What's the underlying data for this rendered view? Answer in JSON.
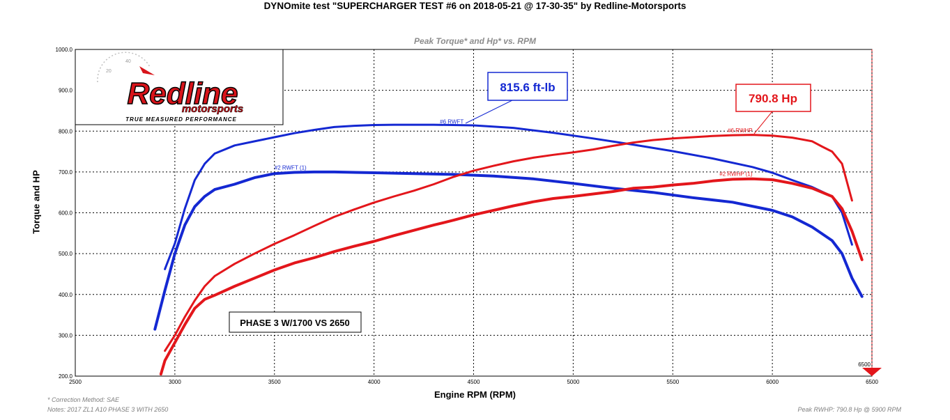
{
  "header": {
    "title": "DYNOmite test \"SUPERCHARGER TEST #6 on 2018-05-21 @ 17-30-35\" by Redline-Motorsports",
    "subtitle": "Peak Torque* and Hp* vs. RPM"
  },
  "logo": {
    "brand": "Redline",
    "sub": "motorsports",
    "tagline": "TRUE MEASURED PERFORMANCE"
  },
  "footer": {
    "correction": "* Correction Method: SAE",
    "notes": "Notes: 2017 ZL1 A10 PHASE 3 WITH 2650",
    "peak": "Peak RWHP: 790.8 Hp @ 5900 RPM"
  },
  "annotations": {
    "torque_callout": "815.6 ft-lb",
    "hp_callout": "790.8 Hp",
    "phase_box": "PHASE 3 W/1700 VS 2650",
    "cursor_label": "6500"
  },
  "colors": {
    "torque": "#1428d2",
    "hp": "#e3161b",
    "grid": "#000000",
    "cursor": "#e3161b"
  },
  "chart_data": {
    "type": "line",
    "title": "Peak Torque* and Hp* vs. RPM",
    "xlabel": "Engine RPM (RPM)",
    "ylabel": "Torque and HP",
    "xlim": [
      2500,
      6500
    ],
    "ylim": [
      200,
      1000
    ],
    "x_ticks": [
      "2500",
      "3000",
      "3500",
      "4000",
      "4500",
      "5000",
      "5500",
      "6000",
      "6500"
    ],
    "y_ticks": [
      "200.0",
      "300.0",
      "400.0",
      "500.0",
      "600.0",
      "700.0",
      "800.0",
      "900.0",
      "1000.0"
    ],
    "grid": true,
    "series": [
      {
        "name": "#6 RWFT",
        "label": "#6 RWFT",
        "kind": "torque",
        "width": 3,
        "points": [
          [
            2950,
            462
          ],
          [
            3000,
            525
          ],
          [
            3050,
            610
          ],
          [
            3100,
            680
          ],
          [
            3150,
            720
          ],
          [
            3200,
            745
          ],
          [
            3300,
            765
          ],
          [
            3400,
            775
          ],
          [
            3500,
            785
          ],
          [
            3600,
            795
          ],
          [
            3700,
            803
          ],
          [
            3800,
            810
          ],
          [
            3900,
            813
          ],
          [
            4000,
            815
          ],
          [
            4100,
            815.6
          ],
          [
            4300,
            815.6
          ],
          [
            4500,
            814
          ],
          [
            4700,
            808
          ],
          [
            4900,
            796
          ],
          [
            5100,
            782
          ],
          [
            5300,
            767
          ],
          [
            5500,
            751
          ],
          [
            5700,
            733
          ],
          [
            5900,
            712
          ],
          [
            6000,
            698
          ],
          [
            6100,
            680
          ],
          [
            6200,
            663
          ],
          [
            6300,
            640
          ],
          [
            6350,
            600
          ],
          [
            6400,
            522
          ]
        ]
      },
      {
        "name": "#2 RWFT",
        "label": "#2 RWFT (1)",
        "kind": "torque",
        "width": 4,
        "points": [
          [
            2900,
            315
          ],
          [
            2950,
            410
          ],
          [
            3000,
            500
          ],
          [
            3050,
            570
          ],
          [
            3100,
            615
          ],
          [
            3150,
            640
          ],
          [
            3200,
            657
          ],
          [
            3300,
            670
          ],
          [
            3400,
            686
          ],
          [
            3500,
            696
          ],
          [
            3600,
            699
          ],
          [
            3700,
            700
          ],
          [
            3800,
            700
          ],
          [
            4000,
            698
          ],
          [
            4200,
            696
          ],
          [
            4400,
            694
          ],
          [
            4600,
            690
          ],
          [
            4800,
            683
          ],
          [
            5000,
            672
          ],
          [
            5200,
            660
          ],
          [
            5400,
            650
          ],
          [
            5600,
            637
          ],
          [
            5800,
            626
          ],
          [
            6000,
            606
          ],
          [
            6100,
            590
          ],
          [
            6200,
            565
          ],
          [
            6300,
            532
          ],
          [
            6350,
            500
          ],
          [
            6400,
            440
          ],
          [
            6450,
            395
          ]
        ]
      },
      {
        "name": "#6 RWHP",
        "label": "#6 RWHP",
        "kind": "hp",
        "width": 3,
        "points": [
          [
            2950,
            262
          ],
          [
            3000,
            300
          ],
          [
            3050,
            345
          ],
          [
            3100,
            385
          ],
          [
            3150,
            420
          ],
          [
            3200,
            445
          ],
          [
            3300,
            475
          ],
          [
            3400,
            500
          ],
          [
            3500,
            524
          ],
          [
            3600,
            545
          ],
          [
            3700,
            568
          ],
          [
            3800,
            590
          ],
          [
            3900,
            608
          ],
          [
            4000,
            625
          ],
          [
            4100,
            640
          ],
          [
            4200,
            654
          ],
          [
            4300,
            670
          ],
          [
            4400,
            688
          ],
          [
            4500,
            703
          ],
          [
            4600,
            715
          ],
          [
            4700,
            726
          ],
          [
            4800,
            735
          ],
          [
            4900,
            742
          ],
          [
            5000,
            748
          ],
          [
            5100,
            755
          ],
          [
            5200,
            764
          ],
          [
            5300,
            772
          ],
          [
            5400,
            778
          ],
          [
            5500,
            782
          ],
          [
            5600,
            785
          ],
          [
            5700,
            788
          ],
          [
            5800,
            790
          ],
          [
            5900,
            790.8
          ],
          [
            6000,
            789
          ],
          [
            6100,
            784
          ],
          [
            6200,
            775
          ],
          [
            6250,
            762
          ],
          [
            6300,
            750
          ],
          [
            6350,
            720
          ],
          [
            6400,
            630
          ]
        ]
      },
      {
        "name": "#2 RWHP",
        "label": "#2 RWHP (1)",
        "kind": "hp",
        "width": 4,
        "points": [
          [
            2930,
            205
          ],
          [
            2950,
            238
          ],
          [
            3000,
            282
          ],
          [
            3050,
            326
          ],
          [
            3100,
            366
          ],
          [
            3150,
            388
          ],
          [
            3200,
            398
          ],
          [
            3300,
            420
          ],
          [
            3400,
            440
          ],
          [
            3500,
            460
          ],
          [
            3600,
            477
          ],
          [
            3700,
            490
          ],
          [
            3800,
            505
          ],
          [
            3900,
            518
          ],
          [
            4000,
            530
          ],
          [
            4100,
            544
          ],
          [
            4200,
            557
          ],
          [
            4300,
            570
          ],
          [
            4400,
            582
          ],
          [
            4500,
            595
          ],
          [
            4600,
            606
          ],
          [
            4700,
            617
          ],
          [
            4800,
            627
          ],
          [
            4900,
            635
          ],
          [
            5000,
            640
          ],
          [
            5100,
            646
          ],
          [
            5200,
            652
          ],
          [
            5300,
            660
          ],
          [
            5400,
            663
          ],
          [
            5500,
            668
          ],
          [
            5600,
            672
          ],
          [
            5700,
            678
          ],
          [
            5800,
            682
          ],
          [
            5900,
            683
          ],
          [
            6000,
            681
          ],
          [
            6100,
            672
          ],
          [
            6200,
            660
          ],
          [
            6300,
            640
          ],
          [
            6350,
            610
          ],
          [
            6400,
            555
          ],
          [
            6450,
            485
          ]
        ]
      }
    ],
    "annotations": [
      "815.6 ft-lb",
      "790.8 Hp",
      "PHASE 3 W/1700 VS 2650"
    ],
    "legend": "none"
  }
}
